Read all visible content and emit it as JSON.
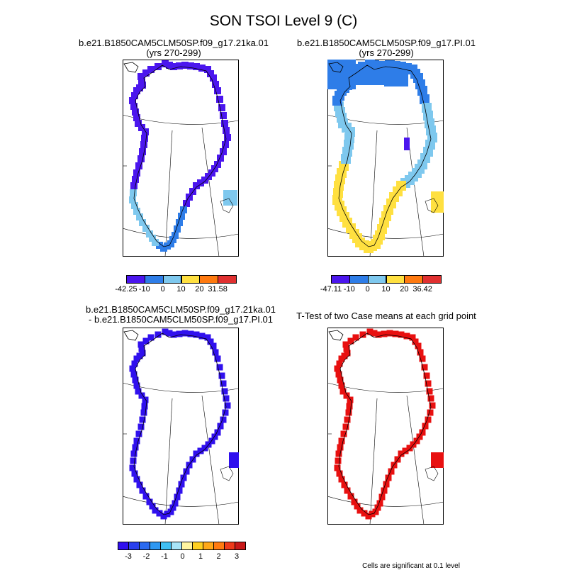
{
  "title": "SON TSOI Level 9 (C)",
  "panels": [
    {
      "id": "case1",
      "title_lines": [
        "b.e21.B1850CAM5CLM50SP.f09_g17.21ka.01",
        "(yrs 270-299)"
      ],
      "colorbar": {
        "colors": [
          "#4b16ee",
          "#2e7de8",
          "#7ec8ee",
          "#ffe040",
          "#ff7a10",
          "#e03030"
        ],
        "labels": [
          "-42.25",
          "-10",
          "0",
          "10",
          "20",
          "31.58"
        ]
      }
    },
    {
      "id": "case2",
      "title_lines": [
        "b.e21.B1850CAM5CLM50SP.f09_g17.PI.01",
        "(yrs 270-299)"
      ],
      "colorbar": {
        "colors": [
          "#4b16ee",
          "#2e7de8",
          "#7ec8ee",
          "#ffe040",
          "#ff7a10",
          "#e03030"
        ],
        "labels": [
          "-47.11",
          "-10",
          "0",
          "10",
          "20",
          "36.42"
        ]
      }
    },
    {
      "id": "difference",
      "title_lines": [
        "b.e21.B1850CAM5CLM50SP.f09_g17.21ka.01",
        "- b.e21.B1850CAM5CLM50SP.f09_g17.PI.01"
      ],
      "colorbar": {
        "colors": [
          "#3010ee",
          "#2a40ee",
          "#2a6af0",
          "#2e98f2",
          "#40c0f4",
          "#a8e4f8",
          "#fff5a0",
          "#ffd020",
          "#ffa818",
          "#ff7a10",
          "#ee3a1a",
          "#c81818"
        ],
        "labels": [
          "-3",
          "-2",
          "-1",
          "0",
          "1",
          "2",
          "3"
        ]
      }
    },
    {
      "id": "ttest",
      "title_lines": [
        "T-Test of two Case means at each grid point"
      ],
      "note": "Cells are significant at 0.1 level"
    }
  ]
}
